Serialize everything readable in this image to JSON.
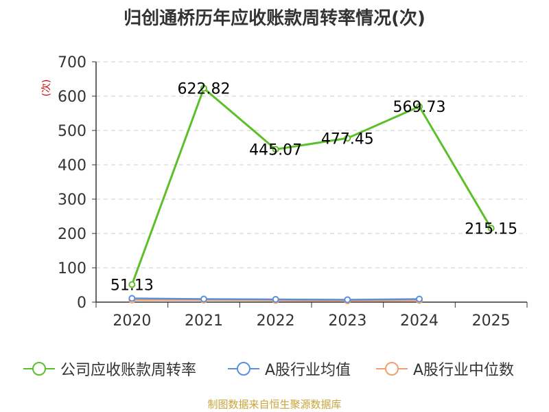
{
  "chart_data": {
    "type": "line",
    "title": "归创通桥历年应收账款周转率情况(次)",
    "ylabel": "(次)",
    "ylim": [
      0,
      700
    ],
    "yticks": [
      0,
      100,
      200,
      300,
      400,
      500,
      600,
      700
    ],
    "categories": [
      "2020",
      "2021",
      "2022",
      "2023",
      "2024",
      "2025"
    ],
    "grid": true,
    "legend_position": "bottom",
    "series": [
      {
        "name": "公司应收账款周转率",
        "color": "#5cbf2a",
        "values": [
          51.13,
          622.82,
          445.07,
          477.45,
          569.73,
          215.15
        ],
        "labels": [
          "51.13",
          "622.82",
          "445.07",
          "477.45",
          "569.73",
          "215.15"
        ]
      },
      {
        "name": "A股行业均值",
        "color": "#5b8fd9",
        "values": [
          11,
          9,
          8,
          7,
          9,
          null
        ]
      },
      {
        "name": "A股行业中位数",
        "color": "#f0a070",
        "values": [
          6,
          6,
          5,
          4,
          5,
          null
        ]
      }
    ]
  },
  "source": "制图数据来自恒生聚源数据库"
}
